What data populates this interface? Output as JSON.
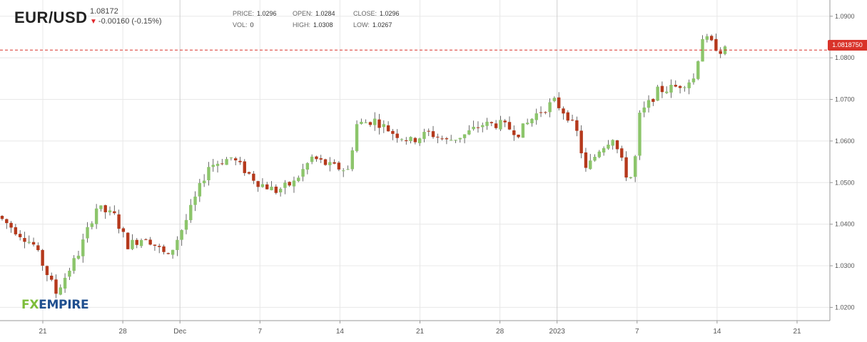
{
  "header": {
    "symbol": "EUR/USD",
    "price": "1.08172",
    "change": "-0.00160 (-0.15%)",
    "stats": [
      {
        "key": "PRICE:",
        "value": "1.0296"
      },
      {
        "key": "OPEN:",
        "value": "1.0284"
      },
      {
        "key": "CLOSE:",
        "value": "1.0296"
      },
      {
        "key": "VOL:",
        "value": "0"
      },
      {
        "key": "HIGH:",
        "value": "1.0308"
      },
      {
        "key": "LOW:",
        "value": "1.0267"
      }
    ]
  },
  "logo": {
    "fx": "FX",
    "empire": "EMPIRE"
  },
  "current_price_label": "1.0818750",
  "colors": {
    "up": "#8cc56b",
    "down": "#b5391c",
    "grid": "#e8e8e8",
    "price_line": "#d9332a",
    "price_tag": "#d9332a"
  },
  "chart_data": {
    "type": "candlestick",
    "title": "EUR/USD",
    "current_price": 1.081875,
    "ylim": [
      1.0175,
      1.0915
    ],
    "y_ticks": [
      "1.0900",
      "1.0800",
      "1.0700",
      "1.0600",
      "1.0500",
      "1.0400",
      "1.0300",
      "1.0200"
    ],
    "x_ticks": [
      "21",
      "28",
      "Dec",
      "7",
      "14",
      "21",
      "28",
      "2023",
      "7",
      "14",
      "21"
    ],
    "grid": true,
    "anchors": [
      [
        0.0,
        1.042
      ],
      [
        8.0,
        1.035
      ],
      [
        13.0,
        1.0235
      ],
      [
        18.0,
        1.033
      ],
      [
        22.0,
        1.044
      ],
      [
        26.0,
        1.042
      ],
      [
        29.0,
        1.035
      ],
      [
        33.0,
        1.037
      ],
      [
        38.0,
        1.032
      ],
      [
        42.0,
        1.041
      ],
      [
        47.0,
        1.054
      ],
      [
        52.0,
        1.056
      ],
      [
        58.0,
        1.05
      ],
      [
        62.0,
        1.048
      ],
      [
        66.0,
        1.05
      ],
      [
        70.0,
        1.056
      ],
      [
        74.0,
        1.054
      ],
      [
        78.0,
        1.053
      ],
      [
        80.0,
        1.064
      ],
      [
        84.0,
        1.065
      ],
      [
        88.0,
        1.062
      ],
      [
        92.0,
        1.06
      ],
      [
        96.0,
        1.062
      ],
      [
        100.0,
        1.06
      ],
      [
        104.0,
        1.0615
      ],
      [
        108.0,
        1.064
      ],
      [
        112.0,
        1.064
      ],
      [
        116.0,
        1.062
      ],
      [
        120.0,
        1.0665
      ],
      [
        124.0,
        1.0695
      ],
      [
        127.0,
        1.066
      ],
      [
        129.0,
        1.062
      ],
      [
        131.0,
        1.053
      ],
      [
        134.0,
        1.058
      ],
      [
        137.0,
        1.061
      ],
      [
        140.0,
        1.052
      ],
      [
        141.5,
        1.051
      ],
      [
        143.0,
        1.066
      ],
      [
        147.0,
        1.072
      ],
      [
        151.0,
        1.073
      ],
      [
        155.0,
        1.075
      ],
      [
        157.0,
        1.085
      ],
      [
        161.0,
        1.0818
      ]
    ]
  }
}
